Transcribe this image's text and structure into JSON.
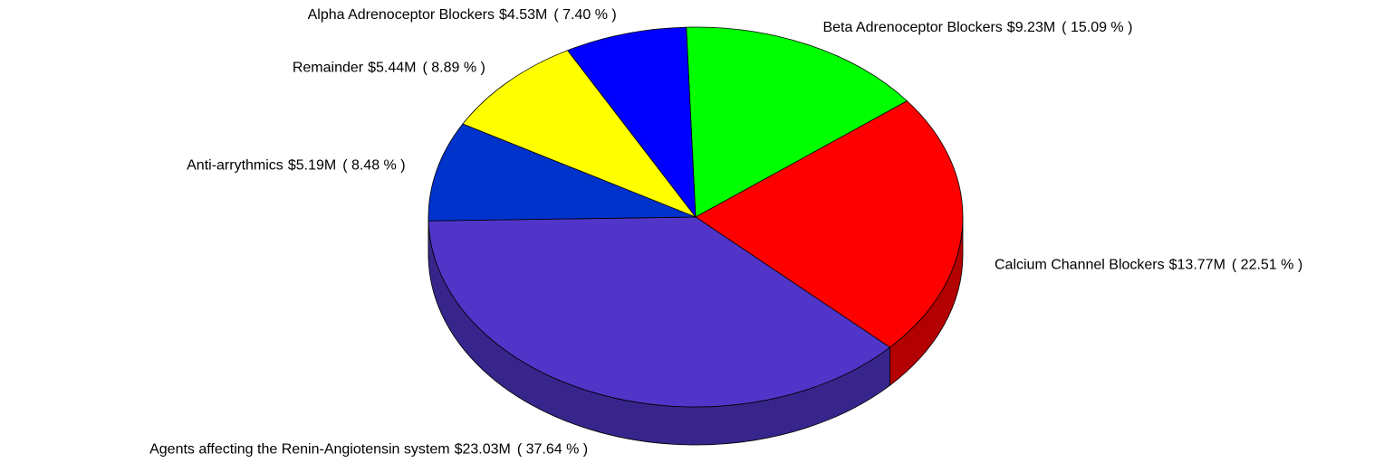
{
  "chart_data": {
    "type": "pie3d",
    "categories": [
      "Beta Adrenoceptor Blockers",
      "Calcium Channel Blockers",
      "Agents affecting the Renin-Angiotensin system",
      "Anti-arrythmics",
      "Remainder",
      "Alpha Adrenoceptor Blockers"
    ],
    "values": [
      15.09,
      22.51,
      37.64,
      8.48,
      8.89,
      7.4
    ],
    "value_labels": [
      "( 15.09 % )",
      "( 22.51 % )",
      "( 37.64 % )",
      "( 8.48 % )",
      "( 8.89 % )",
      "( 7.40 % )"
    ],
    "amounts": [
      9230000,
      13770000,
      23030000,
      5190000,
      5440000,
      4530000
    ],
    "amount_labels": [
      "$9.23M",
      "$13.77M",
      "$23.03M",
      "$5.19M",
      "$5.44M",
      "$4.53M"
    ],
    "colors": [
      "#00ff00",
      "#ff0000",
      "#5035c8",
      "#0033cc",
      "#ffff00",
      "#0000ff"
    ]
  }
}
